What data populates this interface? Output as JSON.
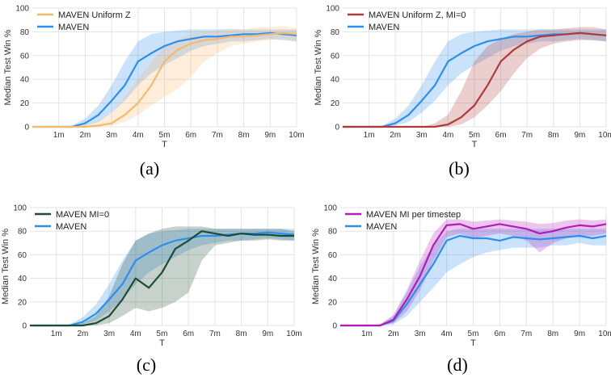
{
  "colors": {
    "maven": "#2b8ff0",
    "uniform_z": "#f7b96a",
    "uniform_z_mi0": "#b03a3a",
    "mi0": "#1e4d33",
    "mi_per_timestep": "#b51ab8",
    "grid": "#e3e3e3"
  },
  "chart_data": [
    {
      "type": "line",
      "caption": "(a)",
      "xlabel": "T",
      "ylabel": "Median Test Win %",
      "xticks": [
        "1m",
        "2m",
        "3m",
        "4m",
        "5m",
        "6m",
        "7m",
        "8m",
        "9m",
        "10m"
      ],
      "yticks": [
        "0",
        "20",
        "40",
        "60",
        "80",
        "100"
      ],
      "xlim": [
        0,
        10
      ],
      "ylim": [
        0,
        100
      ],
      "legend_position": "top-left",
      "grid": true,
      "x": [
        0,
        0.5,
        1,
        1.5,
        2,
        2.5,
        3,
        3.5,
        4,
        4.5,
        5,
        5.5,
        6,
        6.5,
        7,
        7.5,
        8,
        8.5,
        9,
        9.5,
        10
      ],
      "series": [
        {
          "name": "MAVEN Uniform Z",
          "color_key": "uniform_z",
          "values": [
            0,
            0,
            0,
            0,
            0,
            1,
            3,
            10,
            20,
            35,
            55,
            65,
            70,
            73,
            74,
            76,
            76,
            77,
            78,
            79,
            78
          ],
          "lower": [
            0,
            0,
            0,
            0,
            0,
            0,
            1,
            4,
            10,
            18,
            25,
            32,
            42,
            55,
            62,
            68,
            70,
            72,
            73,
            74,
            72
          ],
          "upper": [
            0,
            0,
            0,
            0,
            2,
            5,
            12,
            25,
            40,
            55,
            68,
            74,
            78,
            80,
            81,
            83,
            82,
            84,
            84,
            85,
            83
          ]
        },
        {
          "name": "MAVEN",
          "color_key": "maven",
          "values": [
            0,
            0,
            0,
            0,
            3,
            10,
            22,
            35,
            55,
            62,
            68,
            72,
            74,
            76,
            76,
            77,
            78,
            78,
            79,
            78,
            77
          ],
          "lower": [
            0,
            0,
            0,
            0,
            1,
            4,
            12,
            22,
            35,
            45,
            52,
            58,
            64,
            68,
            70,
            72,
            72,
            73,
            74,
            73,
            72
          ],
          "upper": [
            0,
            0,
            0,
            1,
            7,
            18,
            35,
            55,
            72,
            78,
            80,
            81,
            82,
            82,
            82,
            82,
            82,
            82,
            82,
            82,
            82
          ]
        }
      ]
    },
    {
      "type": "line",
      "caption": "(b)",
      "xlabel": "T",
      "ylabel": "Median Test Win %",
      "xticks": [
        "1m",
        "2m",
        "3m",
        "4m",
        "5m",
        "6m",
        "7m",
        "8m",
        "9m",
        "10m"
      ],
      "yticks": [
        "0",
        "20",
        "40",
        "60",
        "80",
        "100"
      ],
      "xlim": [
        0,
        10
      ],
      "ylim": [
        0,
        100
      ],
      "legend_position": "top-left",
      "grid": true,
      "x": [
        0,
        0.5,
        1,
        1.5,
        2,
        2.5,
        3,
        3.5,
        4,
        4.5,
        5,
        5.5,
        6,
        6.5,
        7,
        7.5,
        8,
        8.5,
        9,
        9.5,
        10
      ],
      "series": [
        {
          "name": "MAVEN Uniform Z, MI=0",
          "color_key": "uniform_z_mi0",
          "values": [
            0,
            0,
            0,
            0,
            0,
            0,
            0,
            0,
            2,
            8,
            18,
            35,
            55,
            65,
            72,
            76,
            77,
            78,
            79,
            78,
            77
          ],
          "lower": [
            0,
            0,
            0,
            0,
            0,
            0,
            0,
            0,
            0,
            2,
            8,
            18,
            30,
            45,
            58,
            66,
            70,
            72,
            73,
            73,
            72
          ],
          "upper": [
            0,
            0,
            0,
            0,
            0,
            0,
            0,
            3,
            10,
            30,
            55,
            68,
            74,
            78,
            80,
            82,
            82,
            83,
            84,
            84,
            82
          ]
        },
        {
          "name": "MAVEN",
          "color_key": "maven",
          "values": [
            0,
            0,
            0,
            0,
            3,
            10,
            22,
            35,
            55,
            62,
            68,
            72,
            74,
            76,
            76,
            77,
            78,
            78,
            79,
            78,
            77
          ],
          "lower": [
            0,
            0,
            0,
            0,
            1,
            4,
            12,
            22,
            35,
            45,
            52,
            58,
            64,
            68,
            70,
            72,
            72,
            73,
            74,
            73,
            72
          ],
          "upper": [
            0,
            0,
            0,
            1,
            7,
            18,
            35,
            55,
            72,
            78,
            80,
            81,
            82,
            82,
            82,
            82,
            82,
            82,
            82,
            82,
            82
          ]
        }
      ]
    },
    {
      "type": "line",
      "caption": "(c)",
      "xlabel": "T",
      "ylabel": "Median Test Win %",
      "xticks": [
        "1m",
        "2m",
        "3m",
        "4m",
        "5m",
        "6m",
        "7m",
        "8m",
        "9m",
        "10m"
      ],
      "yticks": [
        "0",
        "20",
        "40",
        "60",
        "80",
        "100"
      ],
      "xlim": [
        0,
        10
      ],
      "ylim": [
        0,
        100
      ],
      "legend_position": "top-left",
      "grid": true,
      "x": [
        0,
        0.5,
        1,
        1.5,
        2,
        2.5,
        3,
        3.5,
        4,
        4.5,
        5,
        5.5,
        6,
        6.5,
        7,
        7.5,
        8,
        8.5,
        9,
        9.5,
        10
      ],
      "series": [
        {
          "name": "MAVEN MI=0",
          "color_key": "mi0",
          "values": [
            0,
            0,
            0,
            0,
            0,
            2,
            8,
            22,
            40,
            32,
            45,
            65,
            72,
            80,
            78,
            76,
            78,
            77,
            77,
            76,
            76
          ],
          "lower": [
            0,
            0,
            0,
            0,
            0,
            0,
            2,
            8,
            15,
            12,
            15,
            20,
            28,
            55,
            68,
            70,
            72,
            72,
            73,
            72,
            72
          ],
          "upper": [
            0,
            0,
            0,
            0,
            2,
            8,
            25,
            52,
            72,
            78,
            82,
            84,
            84,
            84,
            82,
            82,
            82,
            82,
            82,
            82,
            80
          ]
        },
        {
          "name": "MAVEN",
          "color_key": "maven",
          "values": [
            0,
            0,
            0,
            0,
            3,
            10,
            22,
            35,
            55,
            62,
            68,
            72,
            74,
            76,
            76,
            77,
            78,
            78,
            79,
            78,
            77
          ],
          "lower": [
            0,
            0,
            0,
            0,
            1,
            4,
            12,
            22,
            35,
            45,
            52,
            58,
            64,
            68,
            70,
            72,
            72,
            73,
            74,
            73,
            72
          ],
          "upper": [
            0,
            0,
            0,
            1,
            7,
            18,
            35,
            55,
            72,
            78,
            80,
            81,
            82,
            82,
            82,
            82,
            82,
            82,
            82,
            82,
            82
          ]
        }
      ]
    },
    {
      "type": "line",
      "caption": "(d)",
      "xlabel": "T",
      "ylabel": "Median Test Win %",
      "xticks": [
        "1m",
        "2m",
        "3m",
        "4m",
        "5m",
        "6m",
        "7m",
        "8m",
        "9m",
        "10m"
      ],
      "yticks": [
        "0",
        "20",
        "40",
        "60",
        "80",
        "100"
      ],
      "xlim": [
        0,
        10
      ],
      "ylim": [
        0,
        100
      ],
      "legend_position": "top-left",
      "grid": true,
      "x": [
        0,
        0.5,
        1,
        1.5,
        2,
        2.5,
        3,
        3.5,
        4,
        4.5,
        5,
        5.5,
        6,
        6.5,
        7,
        7.5,
        8,
        8.5,
        9,
        9.5,
        10
      ],
      "series": [
        {
          "name": "MAVEN MI per timestep",
          "color_key": "mi_per_timestep",
          "values": [
            0,
            0,
            0,
            0,
            5,
            22,
            42,
            68,
            85,
            86,
            82,
            84,
            86,
            84,
            82,
            78,
            80,
            83,
            85,
            84,
            86
          ],
          "lower": [
            0,
            0,
            0,
            0,
            2,
            12,
            30,
            55,
            75,
            78,
            74,
            76,
            78,
            76,
            72,
            62,
            70,
            74,
            76,
            76,
            78
          ],
          "upper": [
            0,
            0,
            0,
            1,
            9,
            30,
            55,
            78,
            90,
            90,
            88,
            89,
            90,
            89,
            88,
            86,
            87,
            89,
            90,
            89,
            90
          ]
        },
        {
          "name": "MAVEN",
          "color_key": "maven",
          "values": [
            0,
            0,
            0,
            0,
            4,
            18,
            35,
            52,
            72,
            76,
            74,
            74,
            72,
            75,
            74,
            73,
            74,
            75,
            76,
            74,
            76
          ],
          "lower": [
            0,
            0,
            0,
            0,
            1,
            8,
            20,
            32,
            45,
            52,
            58,
            62,
            64,
            66,
            66,
            66,
            68,
            68,
            70,
            68,
            68
          ],
          "upper": [
            0,
            0,
            0,
            1,
            8,
            28,
            50,
            68,
            80,
            82,
            82,
            82,
            82,
            82,
            82,
            82,
            82,
            82,
            82,
            82,
            82
          ]
        }
      ]
    }
  ]
}
